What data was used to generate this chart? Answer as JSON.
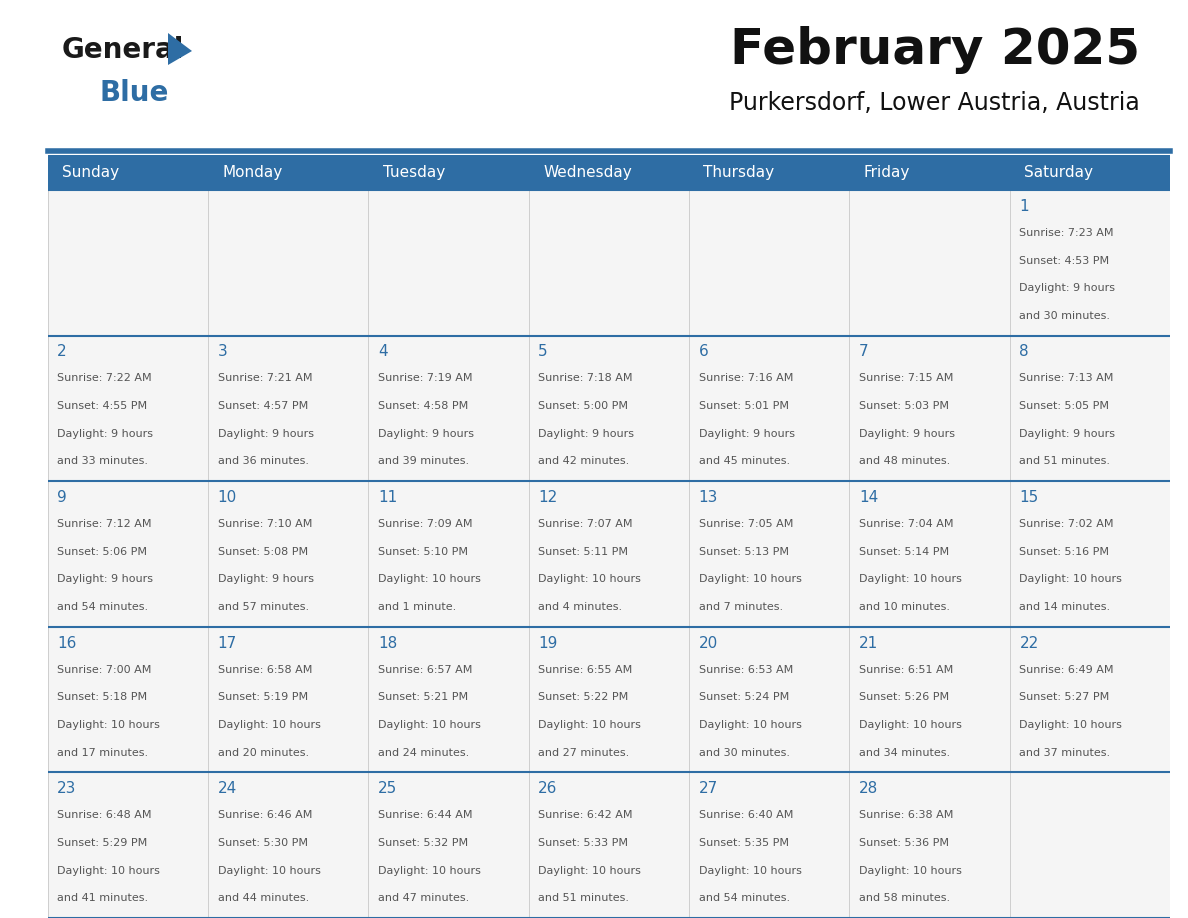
{
  "title": "February 2025",
  "subtitle": "Purkersdorf, Lower Austria, Austria",
  "header_bg": "#2E6DA4",
  "header_text": "#FFFFFF",
  "grid_line_color": "#2E6DA4",
  "day_number_color": "#2E6DA4",
  "info_text_color": "#555555",
  "days_of_week": [
    "Sunday",
    "Monday",
    "Tuesday",
    "Wednesday",
    "Thursday",
    "Friday",
    "Saturday"
  ],
  "weeks": [
    [
      {
        "day": null,
        "info": ""
      },
      {
        "day": null,
        "info": ""
      },
      {
        "day": null,
        "info": ""
      },
      {
        "day": null,
        "info": ""
      },
      {
        "day": null,
        "info": ""
      },
      {
        "day": null,
        "info": ""
      },
      {
        "day": 1,
        "info": "Sunrise: 7:23 AM\nSunset: 4:53 PM\nDaylight: 9 hours\nand 30 minutes."
      }
    ],
    [
      {
        "day": 2,
        "info": "Sunrise: 7:22 AM\nSunset: 4:55 PM\nDaylight: 9 hours\nand 33 minutes."
      },
      {
        "day": 3,
        "info": "Sunrise: 7:21 AM\nSunset: 4:57 PM\nDaylight: 9 hours\nand 36 minutes."
      },
      {
        "day": 4,
        "info": "Sunrise: 7:19 AM\nSunset: 4:58 PM\nDaylight: 9 hours\nand 39 minutes."
      },
      {
        "day": 5,
        "info": "Sunrise: 7:18 AM\nSunset: 5:00 PM\nDaylight: 9 hours\nand 42 minutes."
      },
      {
        "day": 6,
        "info": "Sunrise: 7:16 AM\nSunset: 5:01 PM\nDaylight: 9 hours\nand 45 minutes."
      },
      {
        "day": 7,
        "info": "Sunrise: 7:15 AM\nSunset: 5:03 PM\nDaylight: 9 hours\nand 48 minutes."
      },
      {
        "day": 8,
        "info": "Sunrise: 7:13 AM\nSunset: 5:05 PM\nDaylight: 9 hours\nand 51 minutes."
      }
    ],
    [
      {
        "day": 9,
        "info": "Sunrise: 7:12 AM\nSunset: 5:06 PM\nDaylight: 9 hours\nand 54 minutes."
      },
      {
        "day": 10,
        "info": "Sunrise: 7:10 AM\nSunset: 5:08 PM\nDaylight: 9 hours\nand 57 minutes."
      },
      {
        "day": 11,
        "info": "Sunrise: 7:09 AM\nSunset: 5:10 PM\nDaylight: 10 hours\nand 1 minute."
      },
      {
        "day": 12,
        "info": "Sunrise: 7:07 AM\nSunset: 5:11 PM\nDaylight: 10 hours\nand 4 minutes."
      },
      {
        "day": 13,
        "info": "Sunrise: 7:05 AM\nSunset: 5:13 PM\nDaylight: 10 hours\nand 7 minutes."
      },
      {
        "day": 14,
        "info": "Sunrise: 7:04 AM\nSunset: 5:14 PM\nDaylight: 10 hours\nand 10 minutes."
      },
      {
        "day": 15,
        "info": "Sunrise: 7:02 AM\nSunset: 5:16 PM\nDaylight: 10 hours\nand 14 minutes."
      }
    ],
    [
      {
        "day": 16,
        "info": "Sunrise: 7:00 AM\nSunset: 5:18 PM\nDaylight: 10 hours\nand 17 minutes."
      },
      {
        "day": 17,
        "info": "Sunrise: 6:58 AM\nSunset: 5:19 PM\nDaylight: 10 hours\nand 20 minutes."
      },
      {
        "day": 18,
        "info": "Sunrise: 6:57 AM\nSunset: 5:21 PM\nDaylight: 10 hours\nand 24 minutes."
      },
      {
        "day": 19,
        "info": "Sunrise: 6:55 AM\nSunset: 5:22 PM\nDaylight: 10 hours\nand 27 minutes."
      },
      {
        "day": 20,
        "info": "Sunrise: 6:53 AM\nSunset: 5:24 PM\nDaylight: 10 hours\nand 30 minutes."
      },
      {
        "day": 21,
        "info": "Sunrise: 6:51 AM\nSunset: 5:26 PM\nDaylight: 10 hours\nand 34 minutes."
      },
      {
        "day": 22,
        "info": "Sunrise: 6:49 AM\nSunset: 5:27 PM\nDaylight: 10 hours\nand 37 minutes."
      }
    ],
    [
      {
        "day": 23,
        "info": "Sunrise: 6:48 AM\nSunset: 5:29 PM\nDaylight: 10 hours\nand 41 minutes."
      },
      {
        "day": 24,
        "info": "Sunrise: 6:46 AM\nSunset: 5:30 PM\nDaylight: 10 hours\nand 44 minutes."
      },
      {
        "day": 25,
        "info": "Sunrise: 6:44 AM\nSunset: 5:32 PM\nDaylight: 10 hours\nand 47 minutes."
      },
      {
        "day": 26,
        "info": "Sunrise: 6:42 AM\nSunset: 5:33 PM\nDaylight: 10 hours\nand 51 minutes."
      },
      {
        "day": 27,
        "info": "Sunrise: 6:40 AM\nSunset: 5:35 PM\nDaylight: 10 hours\nand 54 minutes."
      },
      {
        "day": 28,
        "info": "Sunrise: 6:38 AM\nSunset: 5:36 PM\nDaylight: 10 hours\nand 58 minutes."
      },
      {
        "day": null,
        "info": ""
      }
    ]
  ]
}
